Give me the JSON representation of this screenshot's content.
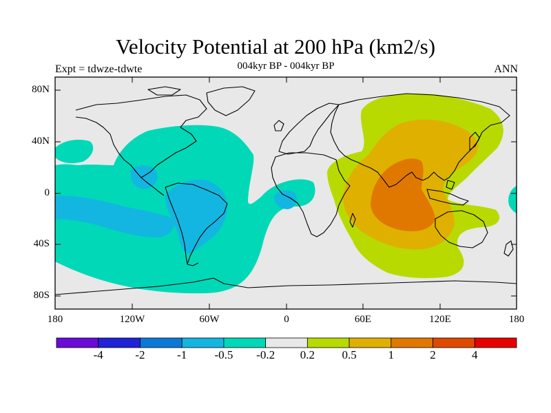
{
  "title": "Velocity Potential at 200 hPa (km2/s)",
  "subtitle": "004kyr BP - 004kyr BP",
  "left_label": "Expt = tdwze-tdwte",
  "right_label": "ANN",
  "lat_labels": [
    "80N",
    "40N",
    "0",
    "40S",
    "80S"
  ],
  "lon_labels": [
    "180",
    "120W",
    "60W",
    "0",
    "60E",
    "120E",
    "180"
  ],
  "colorbar": {
    "colors": [
      "#6a0bd6",
      "#2022d6",
      "#0b78d8",
      "#13b6e0",
      "#00d8b8",
      "#e8e8e8",
      "#b8da00",
      "#e0b000",
      "#e07800",
      "#e04a00",
      "#e80000"
    ],
    "labels": [
      "-4",
      "-2",
      "-1",
      "-0.5",
      "-0.2",
      "0.2",
      "0.5",
      "1",
      "2",
      "4"
    ]
  },
  "colors": {
    "background": "#e8e8e8",
    "teal": "#00d8b8",
    "cyan": "#13b6e0",
    "yellow_green": "#b8da00",
    "orange_yellow": "#e0b000",
    "orange": "#e07800"
  }
}
